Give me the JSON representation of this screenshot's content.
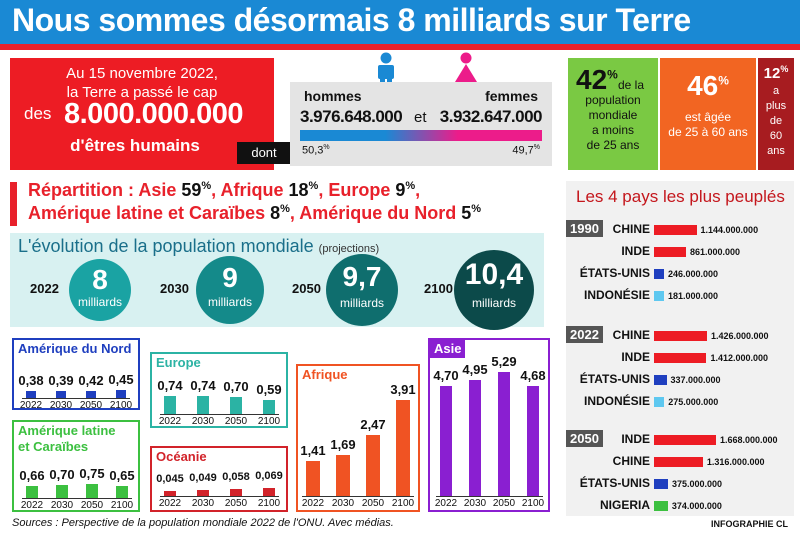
{
  "header": {
    "title": "Nous sommes désormais 8 milliards sur Terre"
  },
  "cap": {
    "line1": "Au 15 novembre 2022,",
    "line2": "la Terre a passé le cap",
    "des": "des",
    "number": "8.000.000.000",
    "line4": "d'êtres humains",
    "dont": "dont"
  },
  "gender": {
    "men_label": "hommes",
    "men_value": "3.976.648.000",
    "et": "et",
    "women_label": "femmes",
    "women_value": "3.932.647.000",
    "men_pct": 50.3,
    "men_pct_label": "50,3",
    "women_pct": 49.7,
    "women_pct_label": "49,7",
    "pct_sign": "%",
    "men_color": "#1a89d4",
    "women_color": "#ec1c8a"
  },
  "age": {
    "young_pct": "42",
    "young_text": [
      "de la",
      "population",
      "mondiale",
      "a moins",
      "de 25 ans"
    ],
    "mid_pct": "46",
    "mid_text": [
      "est âgée",
      "de 25 à 60 ans"
    ],
    "old_pct": "12",
    "old_text": [
      "a",
      "plus",
      "de",
      "60",
      "ans"
    ],
    "pct_sign": "%"
  },
  "repartition": {
    "line1": [
      {
        "t": "Répartition : Asie ",
        "v": "59"
      },
      {
        "t": ", Afrique ",
        "v": "18"
      },
      {
        "t": ", Europe ",
        "v": "9"
      },
      {
        "t": ",",
        "v": ""
      }
    ],
    "line2": [
      {
        "t": "Amérique latine et Caraïbes ",
        "v": "8"
      },
      {
        "t": ", Amérique du Nord ",
        "v": "5"
      }
    ],
    "pct": "%"
  },
  "evolution": {
    "title": "L'évolution de la population mondiale",
    "subtitle": "(projections)",
    "unit": "milliards",
    "points": [
      {
        "year": "2022",
        "value": "8"
      },
      {
        "year": "2030",
        "value": "9"
      },
      {
        "year": "2050",
        "value": "9,7"
      },
      {
        "year": "2100",
        "value": "10,4"
      }
    ]
  },
  "chart_data": [
    {
      "type": "bar",
      "title": "Amérique du Nord",
      "categories": [
        "2022",
        "2030",
        "2050",
        "2100"
      ],
      "values": [
        0.38,
        0.39,
        0.42,
        0.45
      ],
      "labels": [
        "0,38",
        "0,39",
        "0,42",
        "0,45"
      ],
      "color": "#1f3fbf",
      "border": "#1f3fbf"
    },
    {
      "type": "bar",
      "title": "Europe",
      "categories": [
        "2022",
        "2030",
        "2050",
        "2100"
      ],
      "values": [
        0.74,
        0.74,
        0.7,
        0.59
      ],
      "labels": [
        "0,74",
        "0,74",
        "0,70",
        "0,59"
      ],
      "color": "#2bb3a4",
      "border": "#2bb3a4"
    },
    {
      "type": "bar",
      "title": "Amérique latine et Caraïbes",
      "title_lines": [
        "Amérique latine",
        "et Caraïbes"
      ],
      "categories": [
        "2022",
        "2030",
        "2050",
        "2100"
      ],
      "values": [
        0.66,
        0.7,
        0.75,
        0.65
      ],
      "labels": [
        "0,66",
        "0,70",
        "0,75",
        "0,65"
      ],
      "color": "#3cc040",
      "border": "#3cc040"
    },
    {
      "type": "bar",
      "title": "Océanie",
      "categories": [
        "2022",
        "2030",
        "2050",
        "2100"
      ],
      "values": [
        0.045,
        0.049,
        0.058,
        0.069
      ],
      "labels": [
        "0,045",
        "0,049",
        "0,058",
        "0,069"
      ],
      "color": "#d2232a",
      "border": "#d2232a"
    },
    {
      "type": "bar",
      "title": "Afrique",
      "categories": [
        "2022",
        "2030",
        "2050",
        "2100"
      ],
      "values": [
        1.41,
        1.69,
        2.47,
        3.91
      ],
      "labels": [
        "1,41",
        "1,69",
        "2,47",
        "3,91"
      ],
      "color": "#f05323",
      "border": "#f05323"
    },
    {
      "type": "bar",
      "title": "Asie",
      "categories": [
        "2022",
        "2030",
        "2050",
        "2100"
      ],
      "values": [
        4.7,
        4.95,
        5.29,
        4.68
      ],
      "labels": [
        "4,70",
        "4,95",
        "5,29",
        "4,68"
      ],
      "color": "#8a1fd1",
      "border": "#8a1fd1"
    },
    {
      "type": "bar",
      "title": "Les 4 pays les plus peuplés",
      "orientation": "horizontal",
      "groups": [
        {
          "year": "1990",
          "rows": [
            {
              "country": "CHINE",
              "value": 1144000000,
              "label": "1.144.000.000",
              "color": "#ed1c24"
            },
            {
              "country": "INDE",
              "value": 861000000,
              "label": "861.000.000",
              "color": "#ed1c24"
            },
            {
              "country": "ÉTATS-UNIS",
              "value": 246000000,
              "label": "246.000.000",
              "color": "#1f3fbf"
            },
            {
              "country": "INDONÉSIE",
              "value": 181000000,
              "label": "181.000.000",
              "color": "#5ec8f0"
            }
          ]
        },
        {
          "year": "2022",
          "rows": [
            {
              "country": "CHINE",
              "value": 1426000000,
              "label": "1.426.000.000",
              "color": "#ed1c24"
            },
            {
              "country": "INDE",
              "value": 1412000000,
              "label": "1.412.000.000",
              "color": "#ed1c24"
            },
            {
              "country": "ÉTATS-UNIS",
              "value": 337000000,
              "label": "337.000.000",
              "color": "#1f3fbf"
            },
            {
              "country": "INDONÉSIE",
              "value": 275000000,
              "label": "275.000.000",
              "color": "#5ec8f0"
            }
          ]
        },
        {
          "year": "2050",
          "rows": [
            {
              "country": "INDE",
              "value": 1668000000,
              "label": "1.668.000.000",
              "color": "#ed1c24"
            },
            {
              "country": "CHINE",
              "value": 1316000000,
              "label": "1.316.000.000",
              "color": "#ed1c24"
            },
            {
              "country": "ÉTATS-UNIS",
              "value": 375000000,
              "label": "375.000.000",
              "color": "#1f3fbf"
            },
            {
              "country": "NIGERIA",
              "value": 374000000,
              "label": "374.000.000",
              "color": "#3cc040"
            }
          ]
        }
      ]
    }
  ],
  "footer": {
    "sources": "Sources : Perspective de la population mondiale 2022 de l'ONU. Avec médias.",
    "credit": "INFOGRAPHIE CL"
  }
}
